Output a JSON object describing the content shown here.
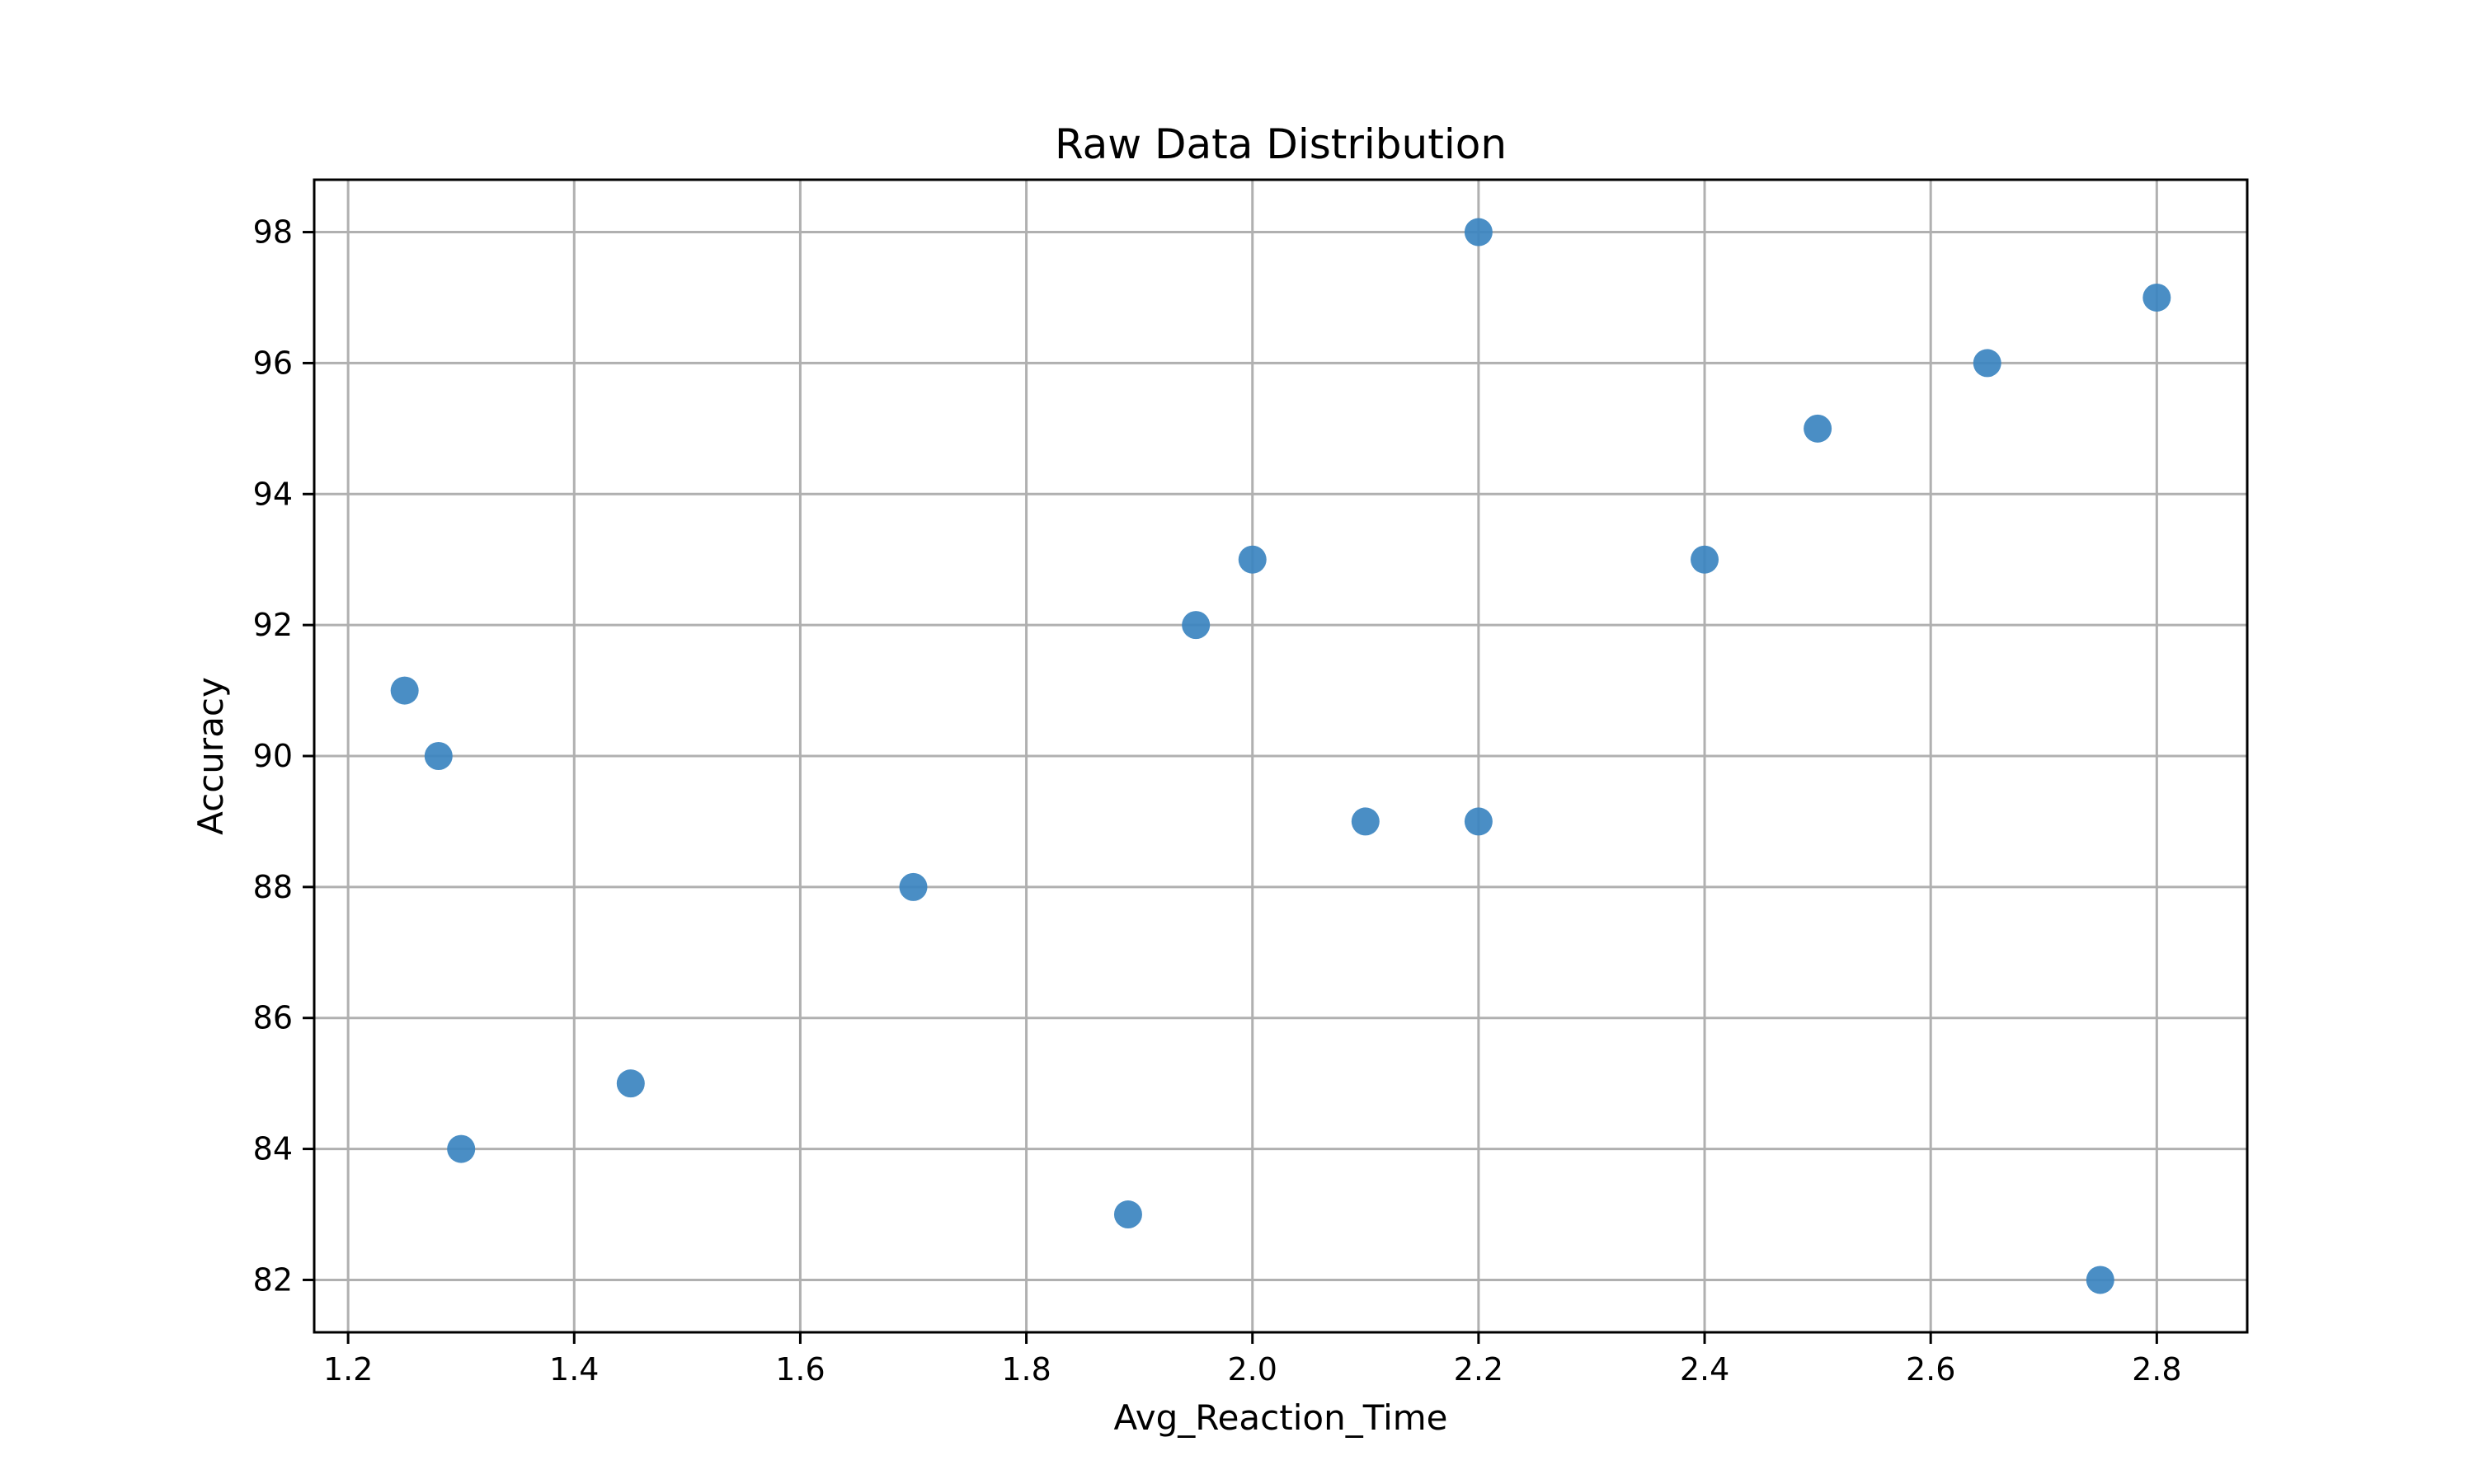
{
  "chart_data": {
    "type": "scatter",
    "title": "Raw Data Distribution",
    "xlabel": "Avg_Reaction_Time",
    "ylabel": "Accuracy",
    "xlim": [
      1.17,
      2.88
    ],
    "ylim": [
      81.2,
      98.8
    ],
    "xticks": [
      1.2,
      1.4,
      1.6,
      1.8,
      2.0,
      2.2,
      2.4,
      2.6,
      2.8
    ],
    "xtick_labels": [
      "1.2",
      "1.4",
      "1.6",
      "1.8",
      "2.0",
      "2.2",
      "2.4",
      "2.6",
      "2.8"
    ],
    "yticks": [
      82,
      84,
      86,
      88,
      90,
      92,
      94,
      96,
      98
    ],
    "ytick_labels": [
      "82",
      "84",
      "86",
      "88",
      "90",
      "92",
      "94",
      "96",
      "98"
    ],
    "grid": true,
    "legend": "none",
    "marker_color": "#3b84c0",
    "grid_color": "#b0b0b0",
    "points": [
      {
        "x": 1.25,
        "y": 91
      },
      {
        "x": 1.28,
        "y": 90
      },
      {
        "x": 1.3,
        "y": 84
      },
      {
        "x": 1.45,
        "y": 85
      },
      {
        "x": 1.7,
        "y": 88
      },
      {
        "x": 1.89,
        "y": 83
      },
      {
        "x": 1.95,
        "y": 92
      },
      {
        "x": 2.0,
        "y": 93
      },
      {
        "x": 2.1,
        "y": 89
      },
      {
        "x": 2.2,
        "y": 98
      },
      {
        "x": 2.2,
        "y": 89
      },
      {
        "x": 2.4,
        "y": 93
      },
      {
        "x": 2.5,
        "y": 95
      },
      {
        "x": 2.65,
        "y": 96
      },
      {
        "x": 2.75,
        "y": 82
      },
      {
        "x": 2.8,
        "y": 97
      }
    ]
  }
}
